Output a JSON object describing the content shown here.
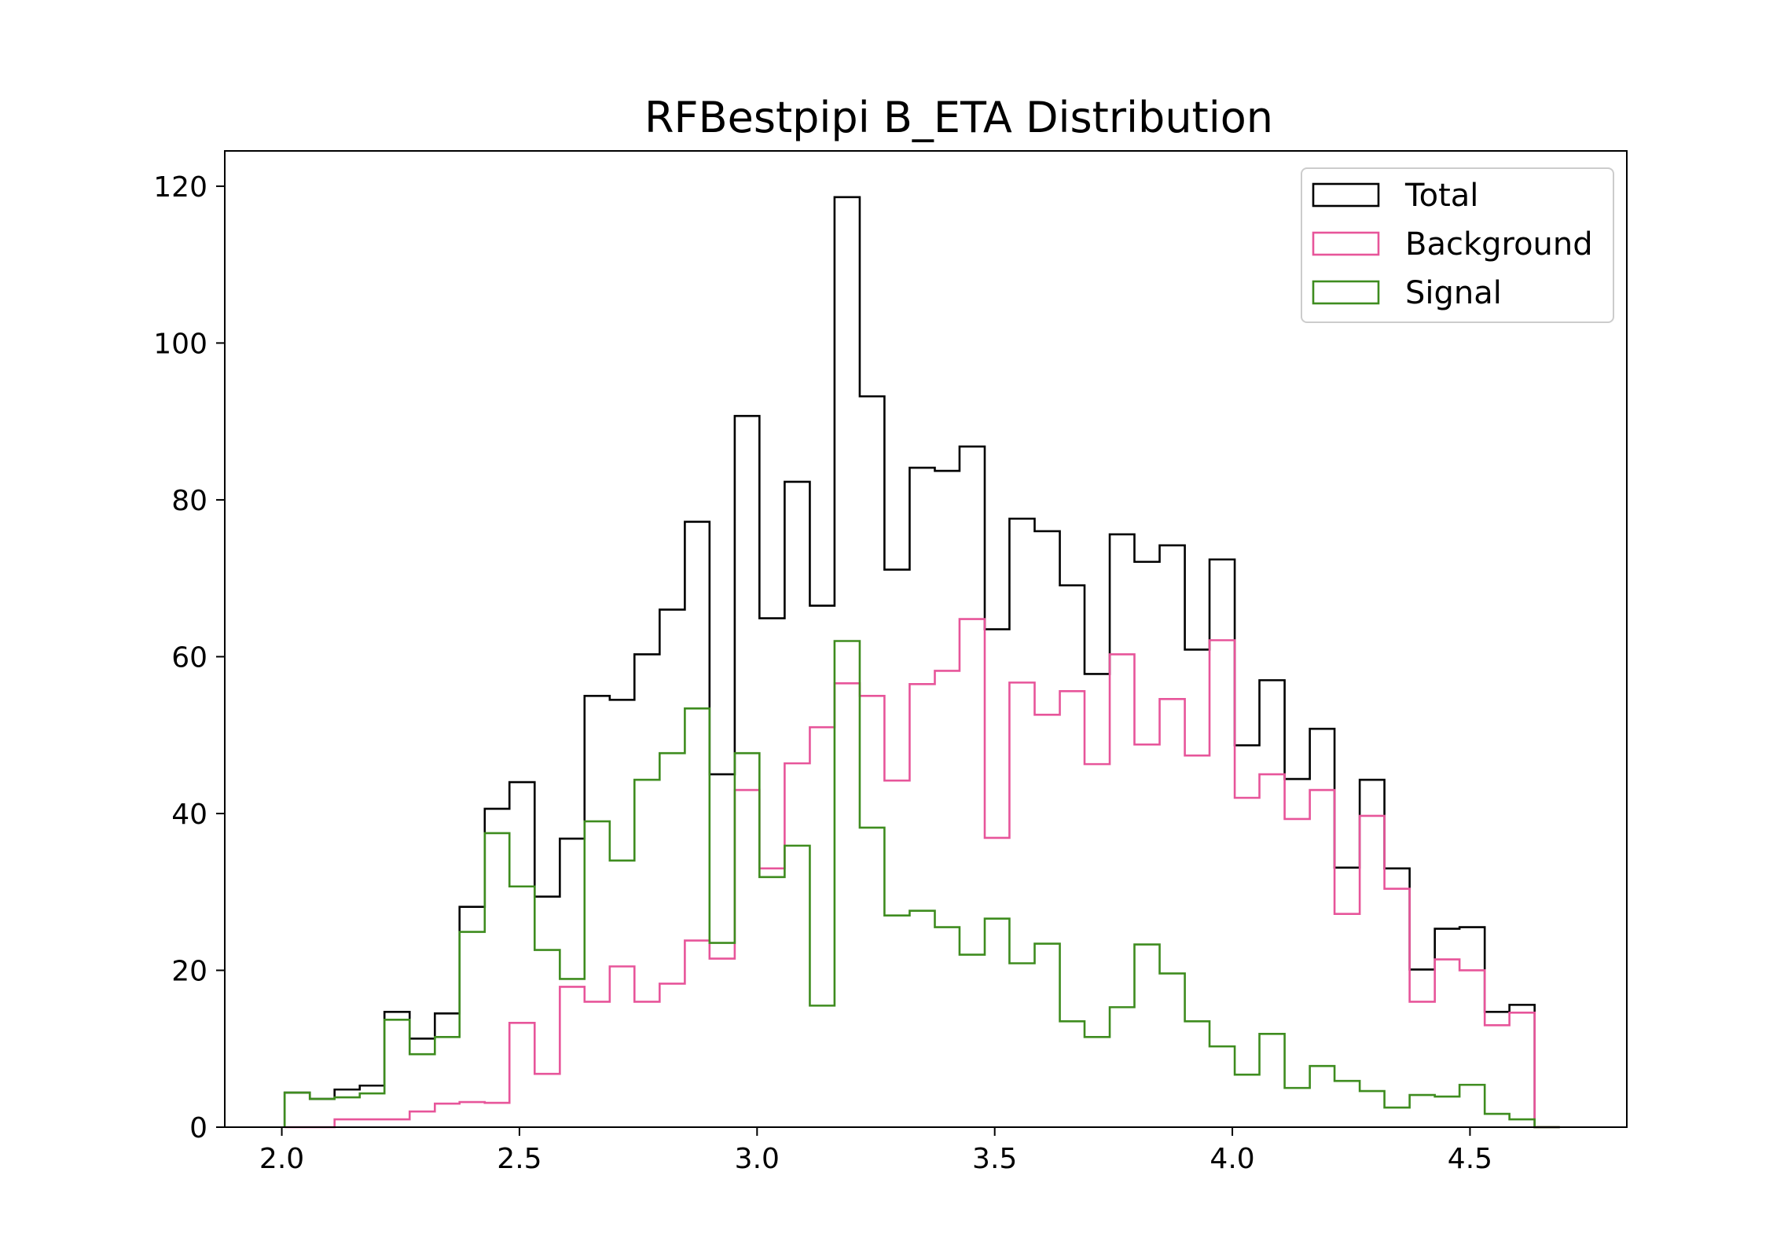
{
  "chart_data": {
    "type": "histogram",
    "title": "RFBestpipi B_ETA Distribution",
    "xlabel": "",
    "ylabel": "",
    "xlim": [
      1.88,
      4.83
    ],
    "ylim": [
      0,
      124.5
    ],
    "xticks": [
      2.0,
      2.5,
      3.0,
      3.5,
      4.0,
      4.5
    ],
    "xtick_labels": [
      "2.0",
      "2.5",
      "3.0",
      "3.5",
      "4.0",
      "4.5"
    ],
    "yticks": [
      0,
      20,
      40,
      60,
      80,
      100,
      120
    ],
    "ytick_labels": [
      "0",
      "20",
      "40",
      "60",
      "80",
      "100",
      "120"
    ],
    "grid": false,
    "legend_position": "top-right",
    "bin_edges": [
      2.006,
      2.059,
      2.111,
      2.164,
      2.216,
      2.269,
      2.322,
      2.374,
      2.427,
      2.479,
      2.532,
      2.585,
      2.637,
      2.69,
      2.742,
      2.795,
      2.848,
      2.9,
      2.953,
      3.005,
      3.058,
      3.111,
      3.163,
      3.216,
      3.268,
      3.321,
      3.374,
      3.426,
      3.479,
      3.531,
      3.584,
      3.637,
      3.689,
      3.742,
      3.794,
      3.847,
      3.9,
      3.952,
      4.005,
      4.057,
      4.11,
      4.163,
      4.215,
      4.268,
      4.32,
      4.373,
      4.426,
      4.478,
      4.531,
      4.583,
      4.636,
      4.689
    ],
    "series": [
      {
        "name": "Total",
        "color": "#000000",
        "values": [
          4.4,
          3.6,
          4.8,
          5.3,
          14.7,
          11.3,
          14.5,
          28.1,
          40.6,
          44.0,
          29.4,
          36.8,
          55.0,
          54.5,
          60.3,
          66.0,
          77.2,
          45.0,
          90.7,
          64.9,
          82.3,
          66.5,
          118.6,
          93.2,
          71.1,
          84.1,
          83.7,
          86.8,
          63.5,
          77.6,
          76.0,
          69.1,
          57.8,
          75.6,
          72.1,
          74.2,
          60.9,
          72.4,
          48.7,
          57.0,
          44.4,
          50.8,
          33.1,
          44.3,
          33.0,
          20.1,
          25.3,
          25.5,
          14.7,
          15.6,
          0.0
        ]
      },
      {
        "name": "Background",
        "color": "#e7559a",
        "values": [
          0.0,
          0.0,
          1.0,
          1.0,
          1.0,
          2.0,
          3.0,
          3.2,
          3.1,
          13.3,
          6.8,
          17.9,
          16.0,
          20.5,
          16.0,
          18.3,
          23.8,
          21.5,
          43.0,
          33.0,
          46.4,
          51.0,
          56.6,
          55.0,
          44.2,
          56.5,
          58.2,
          64.8,
          36.9,
          56.7,
          52.6,
          55.6,
          46.3,
          60.3,
          48.8,
          54.6,
          47.4,
          62.1,
          42.0,
          45.0,
          39.3,
          43.0,
          27.2,
          39.7,
          30.4,
          16.0,
          21.4,
          20.0,
          13.0,
          14.6,
          0.0
        ]
      },
      {
        "name": "Signal",
        "color": "#3e8c1f",
        "values": [
          4.4,
          3.6,
          3.8,
          4.3,
          13.7,
          9.3,
          11.5,
          24.9,
          37.5,
          30.7,
          22.6,
          18.9,
          39.0,
          34.0,
          44.3,
          47.7,
          53.4,
          23.5,
          47.7,
          31.9,
          35.9,
          15.5,
          62.0,
          38.2,
          27.0,
          27.6,
          25.5,
          22.0,
          26.6,
          20.9,
          23.4,
          13.5,
          11.5,
          15.3,
          23.3,
          19.6,
          13.5,
          10.3,
          6.7,
          11.9,
          5.0,
          7.8,
          5.9,
          4.6,
          2.5,
          4.1,
          3.9,
          5.4,
          1.7,
          1.0,
          0.0
        ]
      }
    ]
  }
}
